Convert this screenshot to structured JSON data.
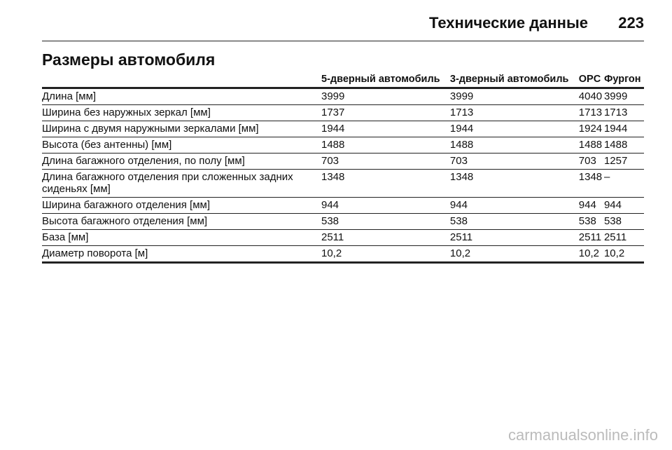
{
  "header": {
    "title": "Технические данные",
    "page": "223"
  },
  "section_title": "Размеры автомобиля",
  "table": {
    "columns": [
      "",
      "5-дверный автомобиль",
      "3-дверный автомобиль",
      "OPC",
      "Фургон"
    ],
    "rows": [
      [
        "Длина [мм]",
        "3999",
        "3999",
        "4040",
        "3999"
      ],
      [
        "Ширина без наружных зеркал [мм]",
        "1737",
        "1713",
        "1713",
        "1713"
      ],
      [
        "Ширина с двумя наружными зеркалами [мм]",
        "1944",
        "1944",
        "1924",
        "1944"
      ],
      [
        "Высота (без антенны) [мм]",
        "1488",
        "1488",
        "1488",
        "1488"
      ],
      [
        "Длина багажного отделения, по полу [мм]",
        "703",
        "703",
        "703",
        "1257"
      ],
      [
        "Длина багажного отделения при сложенных задних сиденьях [мм]",
        "1348",
        "1348",
        "1348",
        "–"
      ],
      [
        "Ширина багажного отделения [мм]",
        "944",
        "944",
        "944",
        "944"
      ],
      [
        "Высота багажного отделения [мм]",
        "538",
        "538",
        "538",
        "538"
      ],
      [
        "База [мм]",
        "2511",
        "2511",
        "2511",
        "2511"
      ],
      [
        "Диаметр поворота [м]",
        "10,2",
        "10,2",
        "10,2",
        "10,2"
      ]
    ]
  },
  "watermark": "carmanualsonline.info"
}
